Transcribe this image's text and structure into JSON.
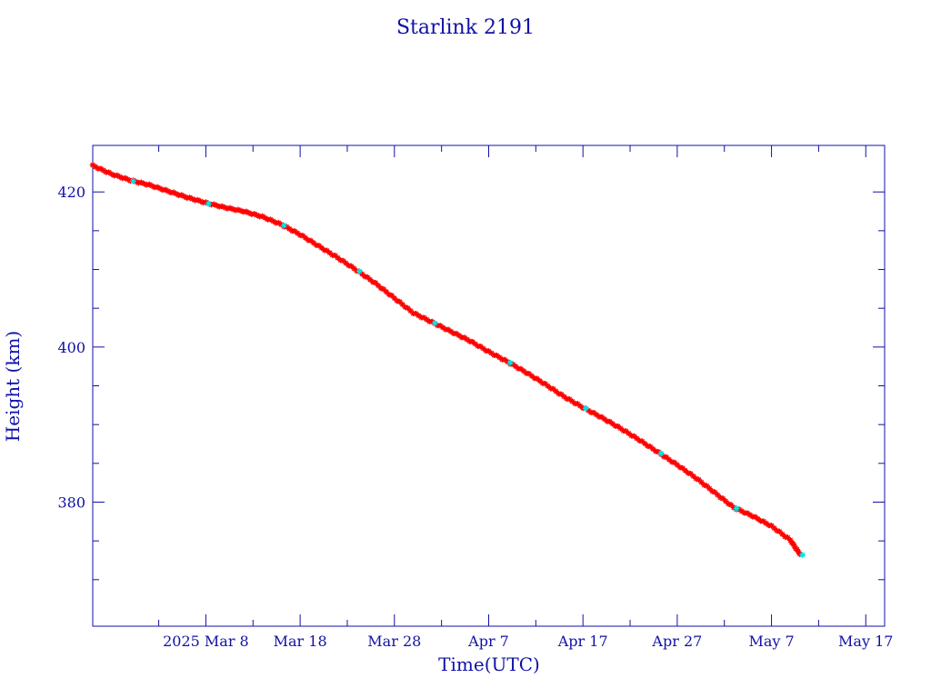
{
  "chart_data": {
    "type": "scatter",
    "title": "Starlink 2191",
    "xlabel": "Time(UTC)",
    "ylabel": "Height (km)",
    "x_tick_labels": [
      "2025 Mar  8",
      "Mar 18",
      "Mar 28",
      "Apr  7",
      "Apr 17",
      "Apr 27",
      "May  7",
      "May 17"
    ],
    "x_tick_dates": [
      "2025-03-08",
      "2025-03-18",
      "2025-03-28",
      "2025-04-07",
      "2025-04-17",
      "2025-04-27",
      "2025-05-07",
      "2025-05-17"
    ],
    "xlim": [
      "2025-02-24",
      "2025-05-19"
    ],
    "y_tick_labels": [
      "380",
      "400",
      "420"
    ],
    "y_ticks": [
      380,
      400,
      420
    ],
    "ylim": [
      364,
      426
    ],
    "grid": false,
    "series": [
      {
        "color": "#ff0000",
        "marker": "asterisk",
        "line_color": "#000000",
        "accent_marker_color": "#00e5e5",
        "points": [
          [
            "2025-02-24",
            423.4
          ],
          [
            "2025-02-26",
            422.3
          ],
          [
            "2025-02-28",
            421.5
          ],
          [
            "2025-03-02",
            420.9
          ],
          [
            "2025-03-04",
            420.1
          ],
          [
            "2025-03-06",
            419.3
          ],
          [
            "2025-03-08",
            418.6
          ],
          [
            "2025-03-10",
            418.0
          ],
          [
            "2025-03-12",
            417.5
          ],
          [
            "2025-03-14",
            416.8
          ],
          [
            "2025-03-16",
            415.8
          ],
          [
            "2025-03-18",
            414.5
          ],
          [
            "2025-03-20",
            413.0
          ],
          [
            "2025-03-22",
            411.5
          ],
          [
            "2025-03-24",
            409.9
          ],
          [
            "2025-03-26",
            408.2
          ],
          [
            "2025-03-28",
            406.3
          ],
          [
            "2025-03-30",
            404.4
          ],
          [
            "2025-04-01",
            403.2
          ],
          [
            "2025-04-03",
            402.0
          ],
          [
            "2025-04-05",
            400.8
          ],
          [
            "2025-04-07",
            399.4
          ],
          [
            "2025-04-09",
            398.1
          ],
          [
            "2025-04-11",
            396.7
          ],
          [
            "2025-04-13",
            395.2
          ],
          [
            "2025-04-15",
            393.6
          ],
          [
            "2025-04-17",
            392.2
          ],
          [
            "2025-04-19",
            390.9
          ],
          [
            "2025-04-21",
            389.5
          ],
          [
            "2025-04-23",
            388.0
          ],
          [
            "2025-04-25",
            386.4
          ],
          [
            "2025-04-27",
            384.8
          ],
          [
            "2025-04-29",
            383.1
          ],
          [
            "2025-05-01",
            381.2
          ],
          [
            "2025-05-03",
            379.3
          ],
          [
            "2025-05-05",
            378.2
          ],
          [
            "2025-05-07",
            376.9
          ],
          [
            "2025-05-09",
            375.1
          ],
          [
            "2025-05-10",
            373.3
          ]
        ]
      }
    ]
  }
}
